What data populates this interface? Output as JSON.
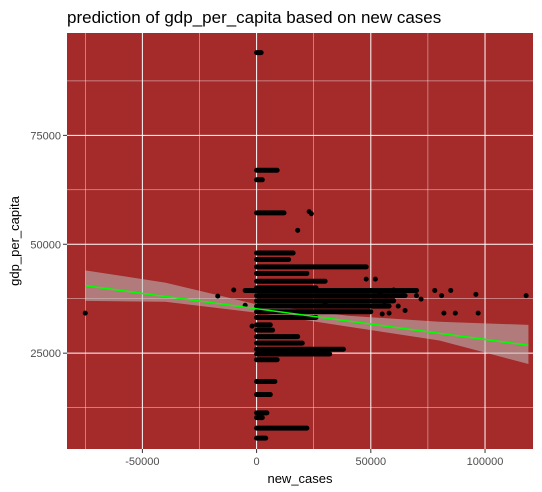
{
  "chart_data": {
    "type": "scatter",
    "title": "prediction of gdp_per_capita based on new cases",
    "xlabel": "new_cases",
    "ylabel": "gdp_per_capita",
    "xlim": [
      -83000,
      121000
    ],
    "ylim": [
      3000,
      98500
    ],
    "x_ticks": [
      -50000,
      0,
      50000,
      100000
    ],
    "x_tick_labels": [
      "-50000",
      "0",
      "50000",
      "100000"
    ],
    "y_ticks": [
      25000,
      50000,
      75000
    ],
    "y_tick_labels": [
      "25000",
      "50000",
      "75000"
    ],
    "grid": true,
    "legend": "none",
    "colors": {
      "panel_background": "#a52a2a",
      "grid": "#ffffff",
      "points": "#000000",
      "fit_line": "#00ff00",
      "confidence_band": "#bdbdbd"
    },
    "clusters": [
      {
        "y": 94000,
        "x_start": 0,
        "x_end": 2000
      },
      {
        "y": 67000,
        "x_start": 0,
        "x_end": 9000
      },
      {
        "y": 64800,
        "x_start": 0,
        "x_end": 2500
      },
      {
        "y": 57200,
        "x_start": 0,
        "x_end": 12000
      },
      {
        "y": 48000,
        "x_start": 0,
        "x_end": 16000
      },
      {
        "y": 46500,
        "x_start": 0,
        "x_end": 14000
      },
      {
        "y": 44800,
        "x_start": 0,
        "x_end": 48000
      },
      {
        "y": 43300,
        "x_start": 0,
        "x_end": 22000
      },
      {
        "y": 41500,
        "x_start": 0,
        "x_end": 30000
      },
      {
        "y": 40000,
        "x_start": 0,
        "x_end": 26000
      },
      {
        "y": 39400,
        "x_start": -5000,
        "x_end": 70000
      },
      {
        "y": 38200,
        "x_start": 0,
        "x_end": 65000
      },
      {
        "y": 37000,
        "x_start": 0,
        "x_end": 60000
      },
      {
        "y": 35800,
        "x_start": 0,
        "x_end": 58000
      },
      {
        "y": 34500,
        "x_start": 0,
        "x_end": 50000
      },
      {
        "y": 33200,
        "x_start": 0,
        "x_end": 26000
      },
      {
        "y": 31500,
        "x_start": 0,
        "x_end": 6000
      },
      {
        "y": 30300,
        "x_start": 0,
        "x_end": 7000
      },
      {
        "y": 28800,
        "x_start": 0,
        "x_end": 18000
      },
      {
        "y": 27300,
        "x_start": 0,
        "x_end": 20000
      },
      {
        "y": 25900,
        "x_start": 0,
        "x_end": 38000
      },
      {
        "y": 24800,
        "x_start": 0,
        "x_end": 32000
      },
      {
        "y": 23500,
        "x_start": 0,
        "x_end": 9000
      },
      {
        "y": 18500,
        "x_start": 0,
        "x_end": 8000
      },
      {
        "y": 15500,
        "x_start": 0,
        "x_end": 6000
      },
      {
        "y": 11300,
        "x_start": 0,
        "x_end": 4500
      },
      {
        "y": 10200,
        "x_start": 0,
        "x_end": 2500
      },
      {
        "y": 7800,
        "x_start": 0,
        "x_end": 22000
      },
      {
        "y": 5500,
        "x_start": 0,
        "x_end": 4000
      }
    ],
    "points": [
      [
        -75000,
        34200
      ],
      [
        -17000,
        38100
      ],
      [
        -10000,
        39500
      ],
      [
        -5000,
        36000
      ],
      [
        -2000,
        31200
      ],
      [
        18000,
        53200
      ],
      [
        23000,
        57500
      ],
      [
        24000,
        57000
      ],
      [
        30000,
        36500
      ],
      [
        48000,
        42000
      ],
      [
        52000,
        42000
      ],
      [
        54000,
        38500
      ],
      [
        55000,
        34000
      ],
      [
        56000,
        36000
      ],
      [
        58000,
        34200
      ],
      [
        60000,
        39500
      ],
      [
        62000,
        35800
      ],
      [
        65000,
        34800
      ],
      [
        66000,
        39400
      ],
      [
        70000,
        38200
      ],
      [
        72000,
        37400
      ],
      [
        78000,
        39400
      ],
      [
        81000,
        38200
      ],
      [
        82000,
        34200
      ],
      [
        85000,
        39400
      ],
      [
        87000,
        34200
      ],
      [
        96000,
        38500
      ],
      [
        97000,
        34200
      ],
      [
        118000,
        38200
      ]
    ],
    "regression": {
      "x": [
        -75000,
        119000
      ],
      "y": [
        40500,
        26800
      ]
    },
    "confidence_band": {
      "x": [
        -75000,
        -40000,
        0,
        40000,
        80000,
        119000
      ],
      "upper": [
        44000,
        41200,
        36200,
        33600,
        32200,
        31500
      ],
      "lower": [
        37000,
        36800,
        34300,
        31100,
        27900,
        22500
      ]
    }
  }
}
